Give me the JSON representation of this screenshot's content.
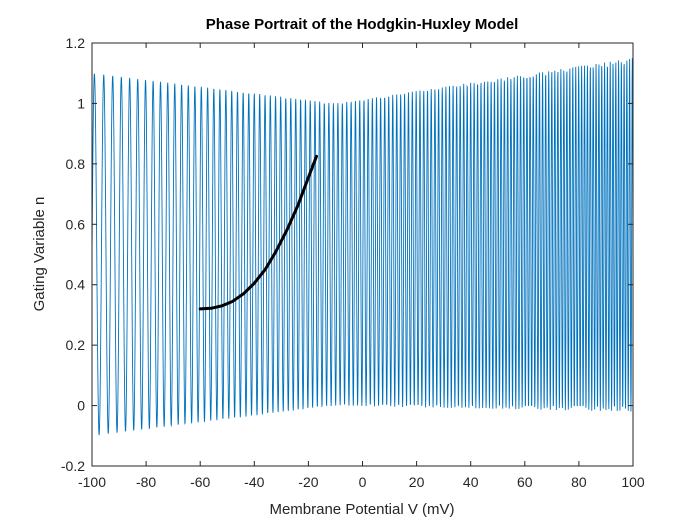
{
  "chart_data": {
    "type": "line",
    "title": "Phase Portrait of the Hodgkin-Huxley Model",
    "xlabel": "Membrane Potential V (mV)",
    "ylabel": "Gating Variable n",
    "xlim": [
      -100,
      100
    ],
    "ylim": [
      -0.2,
      1.2
    ],
    "xticks": [
      "-100",
      "-80",
      "-60",
      "-40",
      "-20",
      "0",
      "20",
      "40",
      "60",
      "80",
      "100"
    ],
    "yticks": [
      "-0.2",
      "0",
      "0.2",
      "0.4",
      "0.6",
      "0.8",
      "1",
      "1.2"
    ],
    "grid": false,
    "series": [
      {
        "color": "#0072BD",
        "style": "dense oscillating band",
        "description_points": {
          "V_range": [
            -100,
            100
          ],
          "n_min_envelope": [
            [
              -100,
              -0.1
            ],
            [
              -10,
              0.0
            ],
            [
              100,
              -0.02
            ]
          ],
          "n_max_envelope": [
            [
              -100,
              1.1
            ],
            [
              -10,
              1.0
            ],
            [
              100,
              1.15
            ]
          ]
        }
      },
      {
        "color": "#000000",
        "style": "thick curve",
        "x": [
          -60,
          -56,
          -52,
          -48,
          -44,
          -40,
          -36,
          -32,
          -28,
          -24,
          -20,
          -17
        ],
        "y": [
          0.32,
          0.322,
          0.33,
          0.345,
          0.37,
          0.405,
          0.45,
          0.51,
          0.58,
          0.66,
          0.755,
          0.825
        ]
      }
    ]
  }
}
